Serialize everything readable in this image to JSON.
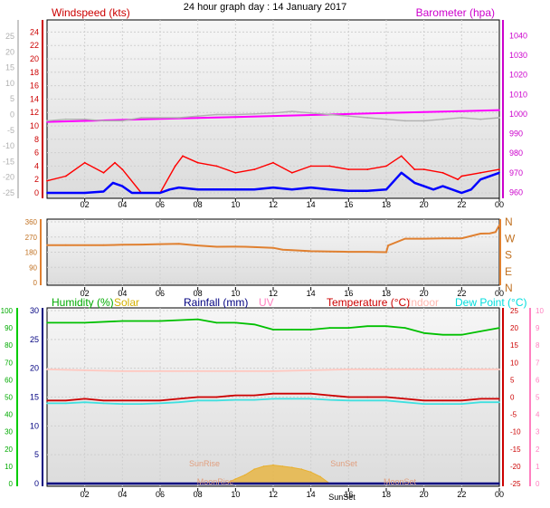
{
  "chart_data": [
    {
      "type": "line",
      "title": "24 hour graph day : 14 January 2017",
      "x_tick_labels": [
        "02",
        "04",
        "06",
        "08",
        "10",
        "12",
        "14",
        "16",
        "18",
        "20",
        "22",
        "00"
      ],
      "left_axis": {
        "label": "Windspeed (kts)",
        "ticks": [
          0,
          2,
          4,
          6,
          8,
          10,
          12,
          14,
          16,
          18,
          20,
          22,
          24
        ],
        "range": [
          0,
          25
        ]
      },
      "outer_left_axis": {
        "ticks": [
          25,
          20,
          15,
          10,
          5,
          0,
          -5,
          -10,
          -15,
          -20,
          -25
        ],
        "range": [
          -25,
          25
        ]
      },
      "right_axis": {
        "label": "Barometer (hpa)",
        "ticks": [
          960,
          970,
          980,
          990,
          1000,
          1010,
          1020,
          1030,
          1040
        ],
        "range": [
          957,
          1048
        ]
      },
      "series": [
        {
          "color": "#ff0000",
          "x": [
            0,
            1,
            2,
            3,
            3.6,
            4,
            5,
            6,
            6.8,
            7.2,
            8,
            9,
            10,
            11,
            12,
            13,
            14,
            15,
            16,
            17,
            18,
            18.8,
            19.5,
            20,
            21,
            21.8,
            22,
            23,
            24
          ],
          "values": [
            1.8,
            2.5,
            4.5,
            3,
            4.5,
            3.5,
            0,
            0,
            4,
            5.5,
            4.5,
            4,
            3,
            3.5,
            4.5,
            3,
            4,
            4,
            3.5,
            3.5,
            4,
            5.5,
            3.5,
            3.5,
            3,
            2,
            2.5,
            3,
            3.5
          ]
        },
        {
          "color": "#0000ff",
          "x": [
            0,
            1,
            2,
            3,
            3.5,
            4,
            4.5,
            5,
            6,
            6.5,
            7,
            8,
            9,
            10,
            11,
            12,
            13,
            14,
            15,
            16,
            17,
            18,
            18.8,
            19.5,
            20,
            20.5,
            21,
            22,
            22.5,
            23,
            24
          ],
          "values": [
            0,
            0,
            0,
            0.2,
            1.5,
            1,
            0,
            0,
            0,
            0.5,
            0.8,
            0.5,
            0.5,
            0.5,
            0.5,
            0.8,
            0.5,
            0.8,
            0.5,
            0.3,
            0.3,
            0.5,
            3,
            1.5,
            1,
            0.5,
            1,
            0,
            0.5,
            2,
            3
          ]
        },
        {
          "color": "#ff00ff",
          "axis": "right",
          "x": [
            0,
            2,
            4,
            6,
            8,
            10,
            12,
            14,
            16,
            18,
            20,
            22,
            24
          ],
          "values": [
            996,
            996.5,
            997,
            997.5,
            998,
            998.5,
            999,
            999.5,
            1000,
            1000.5,
            1001,
            1001.5,
            1002
          ]
        },
        {
          "color": "#b0b0b0",
          "axis": "outer_left",
          "x": [
            0,
            1,
            2,
            3,
            4,
            5,
            6,
            7,
            8,
            9,
            10,
            11,
            12,
            13,
            14,
            15,
            16,
            17,
            18,
            19,
            20,
            21,
            22,
            23,
            24
          ],
          "values": [
            -2,
            -1.5,
            -1.5,
            -2,
            -2,
            -1,
            -1,
            -1,
            -0.5,
            0,
            0,
            0.2,
            0.5,
            1,
            0.5,
            0,
            -0.5,
            -1,
            -1.5,
            -2,
            -2,
            -1.5,
            -1,
            -1.5,
            -1
          ]
        }
      ]
    },
    {
      "type": "line",
      "left_ticks": [
        0,
        90,
        180,
        270,
        360
      ],
      "right_labels": [
        "N",
        "W",
        "S",
        "E",
        "N"
      ],
      "range": [
        0,
        360
      ],
      "x_tick_labels": [
        "02",
        "04",
        "06",
        "08",
        "10",
        "12",
        "14",
        "16",
        "18",
        "20",
        "22",
        "00"
      ],
      "series": [
        {
          "color": "#e08030",
          "x": [
            0,
            1,
            2,
            3,
            4,
            5,
            6,
            7,
            8,
            9,
            10,
            10.5,
            11,
            12,
            12.5,
            13,
            14,
            15,
            16,
            17,
            18,
            18.1,
            19,
            20,
            21,
            22,
            23,
            23.5,
            23.8,
            24
          ],
          "values": [
            222,
            222,
            222,
            222,
            224,
            225,
            228,
            230,
            220,
            212,
            213,
            212,
            210,
            206,
            195,
            192,
            186,
            184,
            182,
            182,
            180,
            220,
            260,
            260,
            262,
            262,
            290,
            292,
            300,
            340
          ]
        }
      ]
    },
    {
      "type": "line",
      "legend": [
        "Humidity (%)",
        "Solar",
        "Rainfall (mm)",
        "UV",
        "Temperature (°C)",
        "Indoor",
        "Dew Point (°C)"
      ],
      "legend_colors": [
        "#00aa00",
        "#d4b000",
        "#000080",
        "#ff80c0",
        "#cc0000",
        "#ffb8b0",
        "#00dddd"
      ],
      "left_humidity_ticks": [
        0,
        10,
        20,
        30,
        40,
        50,
        60,
        70,
        80,
        90,
        100
      ],
      "left_rain_ticks": [
        0,
        5,
        10,
        15,
        20,
        25,
        30
      ],
      "right_temp_ticks": [
        25,
        20,
        15,
        10,
        5,
        0,
        -5,
        -10,
        -15,
        -20,
        -25
      ],
      "right_uv_ticks": [
        10,
        9,
        8,
        7,
        6,
        5,
        4,
        3,
        2,
        1,
        0
      ],
      "x_tick_labels": [
        "02",
        "04",
        "06",
        "08",
        "10",
        "12",
        "14",
        "16",
        "18",
        "20",
        "22",
        "00"
      ],
      "annotations": [
        "SunRise",
        "SunSet",
        "MoonRise",
        "MoonSet",
        "SunSet"
      ],
      "series": [
        {
          "color": "#00c000",
          "axis": "humidity",
          "x": [
            0,
            2,
            4,
            6,
            8,
            9,
            10,
            11,
            12,
            13,
            14,
            15,
            16,
            17,
            18,
            19,
            20,
            21,
            22,
            23,
            24
          ],
          "values": [
            93,
            93,
            94,
            94,
            95,
            93,
            93,
            92,
            89,
            89,
            89,
            90,
            90,
            91,
            91,
            90,
            87,
            86,
            86,
            88,
            90
          ]
        },
        {
          "color": "#cc0000",
          "axis": "temp",
          "x": [
            0,
            1,
            2,
            3,
            4,
            5,
            6,
            7,
            8,
            9,
            10,
            11,
            12,
            13,
            14,
            15,
            16,
            17,
            18,
            19,
            20,
            21,
            22,
            23,
            24
          ],
          "values": [
            -1,
            -1,
            -0.5,
            -1,
            -1,
            -1,
            -1,
            -0.5,
            0,
            0,
            0.5,
            0.5,
            1,
            1,
            1,
            0.5,
            0,
            0,
            0,
            -0.5,
            -1,
            -1,
            -1,
            -0.5,
            -0.5
          ]
        },
        {
          "color": "#40e0e0",
          "axis": "temp",
          "x": [
            0,
            1,
            2,
            3,
            4,
            5,
            6,
            7,
            8,
            9,
            10,
            11,
            12,
            13,
            14,
            15,
            16,
            17,
            18,
            19,
            20,
            21,
            22,
            23,
            24
          ],
          "values": [
            -1.8,
            -1.8,
            -1.5,
            -1.8,
            -2,
            -2,
            -1.8,
            -1.5,
            -1,
            -1,
            -0.8,
            -0.8,
            -0.5,
            -0.5,
            -0.5,
            -0.8,
            -1,
            -1,
            -1,
            -1.5,
            -2,
            -2,
            -2,
            -1.5,
            -1.5
          ]
        },
        {
          "color": "#ffc8c0",
          "axis": "temp",
          "x": [
            0,
            4,
            8,
            12,
            16,
            20,
            24
          ],
          "values": [
            8,
            7.5,
            7.5,
            7.5,
            8,
            8,
            8
          ]
        },
        {
          "color": "#e8b030",
          "axis": "solar",
          "x": [
            9.5,
            10,
            10.5,
            11,
            11.5,
            12,
            12.5,
            13,
            13.5,
            14,
            14.5,
            15
          ],
          "values": [
            0,
            0.8,
            1.5,
            2.5,
            3,
            3.2,
            3,
            2.8,
            2.5,
            2,
            1.2,
            0
          ]
        },
        {
          "color": "#000080",
          "axis": "rain",
          "x": [
            0,
            24
          ],
          "values": [
            0,
            0
          ]
        }
      ]
    }
  ]
}
